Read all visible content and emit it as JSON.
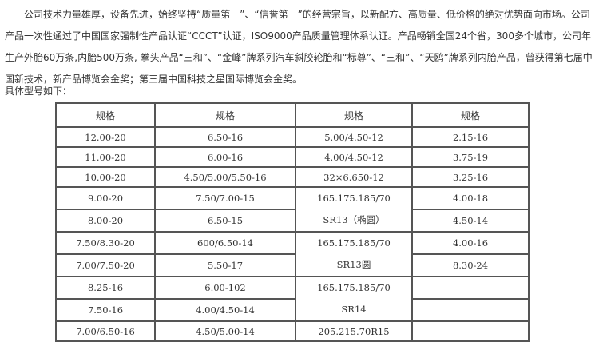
{
  "intro": "公司技术力量雄厚，设备先进，始终坚持“质量第一”、“信誉第一”的经营宗旨，以新配方、高质量、低价格的绝对优势面向市场。公司产品一次性通过了中国国家强制性产品认证“CCCT”认证，ISO9000产品质量管理体系认证。产品畅销全国24个省，300多个城市，公司年生产外胎60万条,内胎500万条, 拳头产品“三和”、“金峰”牌系列汽车斜胶轮胎和“标尊”、“三和”、“天鸥”牌系列内胎产品，曾获得第七届中国新技术，新产品博览会金奖；第三届中国科技之星国际博览会金奖。",
  "lead": "具体型号如下：",
  "table": {
    "headers": [
      "规格",
      "规格",
      "规格",
      "规格"
    ],
    "col1": [
      "12.00-20",
      "11.00-20",
      "10.00-20",
      "9.00-20",
      "8.00-20",
      "7.50/8.30-20",
      "7.00/7.50-20",
      "8.25-16",
      "7.50-16",
      "7.00/6.50-16"
    ],
    "col2": [
      "6.50-16",
      "6.00-16",
      "4.50/5.00/5.50-16",
      "7.50/7.00-15",
      "6.50-15",
      "600/6.50-14",
      "5.50-17",
      "6.00-102",
      "4.00/4.50-14",
      "4.50/5.00-14"
    ],
    "col3": [
      "5.00/4.50-12",
      "4.00/4.50-12",
      "32×6.650-12"
    ],
    "col3_merged": [
      [
        "165.175.185/70",
        "SR13（椭圆）"
      ],
      [
        "165.175.185/70",
        "SR13圆"
      ],
      [
        "165.175.185/70",
        "SR14"
      ]
    ],
    "col3_last": "205.215.70R15",
    "col4": [
      "2.15-16",
      "3.75-19",
      "3.25-16",
      "4.00-18",
      "4.50-14",
      "4.00-16",
      "8.30-24",
      "",
      "",
      ""
    ]
  }
}
